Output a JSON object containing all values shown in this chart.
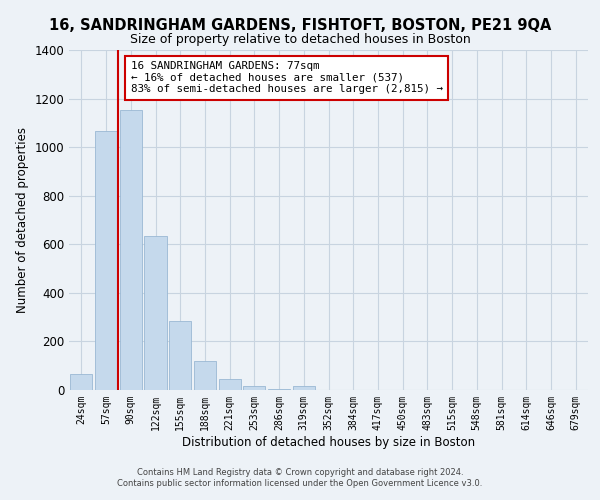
{
  "title": "16, SANDRINGHAM GARDENS, FISHTOFT, BOSTON, PE21 9QA",
  "subtitle": "Size of property relative to detached houses in Boston",
  "xlabel": "Distribution of detached houses by size in Boston",
  "ylabel": "Number of detached properties",
  "bar_labels": [
    "24sqm",
    "57sqm",
    "90sqm",
    "122sqm",
    "155sqm",
    "188sqm",
    "221sqm",
    "253sqm",
    "286sqm",
    "319sqm",
    "352sqm",
    "384sqm",
    "417sqm",
    "450sqm",
    "483sqm",
    "515sqm",
    "548sqm",
    "581sqm",
    "614sqm",
    "646sqm",
    "679sqm"
  ],
  "bar_values": [
    65,
    1068,
    1155,
    635,
    285,
    120,
    47,
    15,
    5,
    18,
    0,
    0,
    0,
    0,
    0,
    0,
    0,
    0,
    0,
    0,
    0
  ],
  "bar_color": "#c5d9ec",
  "bar_edge_color": "#9ab8d4",
  "vline_color": "#cc0000",
  "annotation_line1": "16 SANDRINGHAM GARDENS: 77sqm",
  "annotation_line2": "← 16% of detached houses are smaller (537)",
  "annotation_line3": "83% of semi-detached houses are larger (2,815) →",
  "annotation_box_color": "#ffffff",
  "annotation_box_edge": "#cc0000",
  "ylim": [
    0,
    1400
  ],
  "yticks": [
    0,
    200,
    400,
    600,
    800,
    1000,
    1200,
    1400
  ],
  "footer1": "Contains HM Land Registry data © Crown copyright and database right 2024.",
  "footer2": "Contains public sector information licensed under the Open Government Licence v3.0.",
  "grid_color": "#c8d4e0",
  "bg_color": "#edf2f7"
}
